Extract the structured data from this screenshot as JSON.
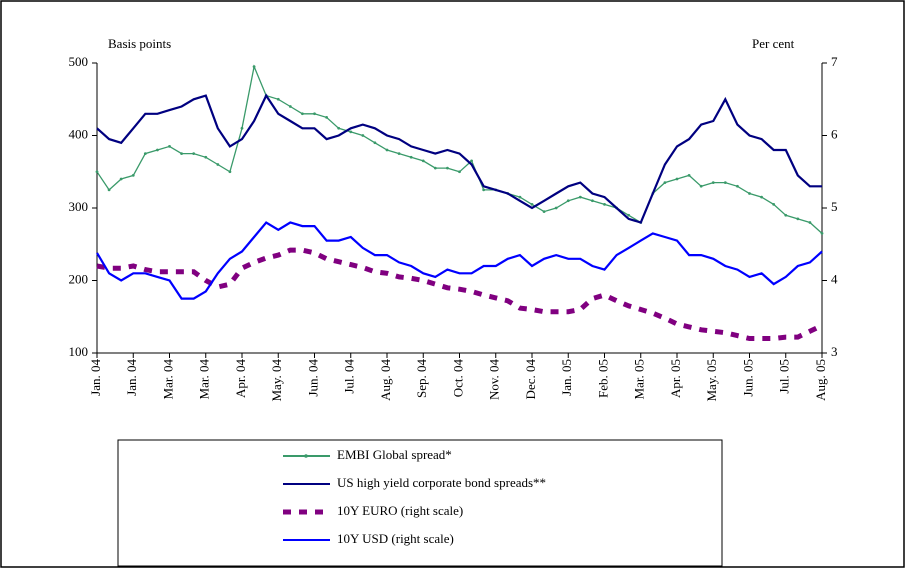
{
  "chart_data": {
    "type": "line",
    "y_label": "Basis points",
    "y2_label": "Per cent",
    "categories": [
      "Jan. 04",
      null,
      null,
      "Jan. 04",
      null,
      null,
      "Mar. 04",
      null,
      null,
      "Mar. 04",
      null,
      null,
      "Apr. 04",
      null,
      null,
      "May. 04",
      null,
      null,
      "Jun. 04",
      null,
      null,
      "Jul. 04",
      null,
      null,
      "Aug. 04",
      null,
      null,
      "Sep. 04",
      null,
      null,
      "Oct. 04",
      null,
      null,
      "Nov. 04",
      null,
      null,
      "Dec. 04",
      null,
      null,
      "Jan. 05",
      null,
      null,
      "Feb. 05",
      null,
      null,
      "Mar. 05",
      null,
      null,
      "Apr. 05",
      null,
      null,
      "May. 05",
      null,
      null,
      "Jun. 05",
      null,
      null,
      "Jul. 05",
      null,
      null,
      "Aug. 05"
    ],
    "ylim": [
      100,
      500
    ],
    "yticks": [
      100,
      200,
      300,
      400,
      500
    ],
    "y2lim": [
      3,
      7
    ],
    "y2ticks": [
      3,
      4,
      5,
      6,
      7
    ],
    "series": [
      {
        "name": "EMBI Global spread*",
        "color": "#3a9a6a",
        "markers": true,
        "values": [
          350,
          325,
          340,
          345,
          375,
          380,
          385,
          375,
          375,
          370,
          360,
          350,
          410,
          495,
          455,
          450,
          440,
          430,
          430,
          425,
          410,
          405,
          400,
          390,
          380,
          375,
          370,
          365,
          355,
          355,
          350,
          365,
          325,
          325,
          320,
          315,
          305,
          295,
          300,
          310,
          315,
          310,
          305,
          300,
          290,
          280,
          320,
          335,
          340,
          345,
          330,
          335,
          335,
          330,
          320,
          315,
          305,
          290,
          285,
          280,
          265
        ]
      },
      {
        "name": "US high yield corporate bond spreads**",
        "color": "#000080",
        "values": [
          410,
          395,
          390,
          410,
          430,
          430,
          435,
          440,
          450,
          455,
          410,
          385,
          395,
          420,
          455,
          430,
          420,
          410,
          410,
          395,
          400,
          410,
          415,
          410,
          400,
          395,
          385,
          380,
          375,
          380,
          375,
          360,
          330,
          325,
          320,
          310,
          300,
          310,
          320,
          330,
          335,
          320,
          315,
          300,
          285,
          280,
          320,
          360,
          385,
          395,
          415,
          420,
          450,
          415,
          400,
          395,
          380,
          380,
          345,
          330,
          330
        ]
      },
      {
        "name": "10Y EURO (right scale)",
        "color": "#800080",
        "axis": "y2",
        "dashed": true,
        "values": [
          4.2,
          4.17,
          4.17,
          4.2,
          4.15,
          4.12,
          4.12,
          4.12,
          4.12,
          4.0,
          3.91,
          3.95,
          4.17,
          4.25,
          4.31,
          4.35,
          4.42,
          4.42,
          4.38,
          4.3,
          4.26,
          4.22,
          4.18,
          4.12,
          4.1,
          4.05,
          4.03,
          4.0,
          3.95,
          3.9,
          3.88,
          3.85,
          3.8,
          3.76,
          3.72,
          3.62,
          3.6,
          3.57,
          3.57,
          3.57,
          3.6,
          3.75,
          3.8,
          3.72,
          3.65,
          3.6,
          3.55,
          3.48,
          3.4,
          3.36,
          3.32,
          3.3,
          3.28,
          3.24,
          3.2,
          3.2,
          3.2,
          3.22,
          3.22,
          3.3,
          3.38
        ]
      },
      {
        "name": "10Y USD (right scale)",
        "color": "#0000ff",
        "axis": "y2",
        "values": [
          4.38,
          4.1,
          4.0,
          4.1,
          4.1,
          4.05,
          4.0,
          3.75,
          3.75,
          3.85,
          4.1,
          4.3,
          4.4,
          4.6,
          4.8,
          4.7,
          4.8,
          4.75,
          4.75,
          4.55,
          4.55,
          4.6,
          4.45,
          4.35,
          4.35,
          4.25,
          4.2,
          4.1,
          4.05,
          4.15,
          4.1,
          4.1,
          4.2,
          4.2,
          4.3,
          4.35,
          4.2,
          4.3,
          4.35,
          4.3,
          4.3,
          4.2,
          4.15,
          4.35,
          4.45,
          4.55,
          4.65,
          4.6,
          4.55,
          4.35,
          4.35,
          4.3,
          4.2,
          4.15,
          4.05,
          4.1,
          3.95,
          4.05,
          4.2,
          4.25,
          4.4
        ]
      }
    ]
  }
}
